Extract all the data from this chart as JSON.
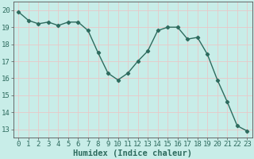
{
  "x": [
    0,
    1,
    2,
    3,
    4,
    5,
    6,
    7,
    8,
    9,
    10,
    11,
    12,
    13,
    14,
    15,
    16,
    17,
    18,
    19,
    20,
    21,
    22,
    23
  ],
  "y": [
    19.9,
    19.4,
    19.2,
    19.3,
    19.1,
    19.3,
    19.3,
    18.8,
    17.5,
    16.3,
    15.9,
    16.3,
    17.0,
    17.6,
    18.8,
    19.0,
    19.0,
    18.3,
    18.4,
    17.4,
    15.9,
    14.6,
    13.2,
    12.9
  ],
  "line_color": "#2e6b5e",
  "marker": "D",
  "marker_size": 2.2,
  "background_color": "#c8ede8",
  "grid_color": "#e8c8c8",
  "xlabel": "Humidex (Indice chaleur)",
  "ylim": [
    12.5,
    20.5
  ],
  "xlim": [
    -0.5,
    23.5
  ],
  "yticks": [
    13,
    14,
    15,
    16,
    17,
    18,
    19,
    20
  ],
  "xticks": [
    0,
    1,
    2,
    3,
    4,
    5,
    6,
    7,
    8,
    9,
    10,
    11,
    12,
    13,
    14,
    15,
    16,
    17,
    18,
    19,
    20,
    21,
    22,
    23
  ],
  "tick_fontsize": 6.5,
  "xlabel_fontsize": 7.5,
  "line_width": 1.0
}
